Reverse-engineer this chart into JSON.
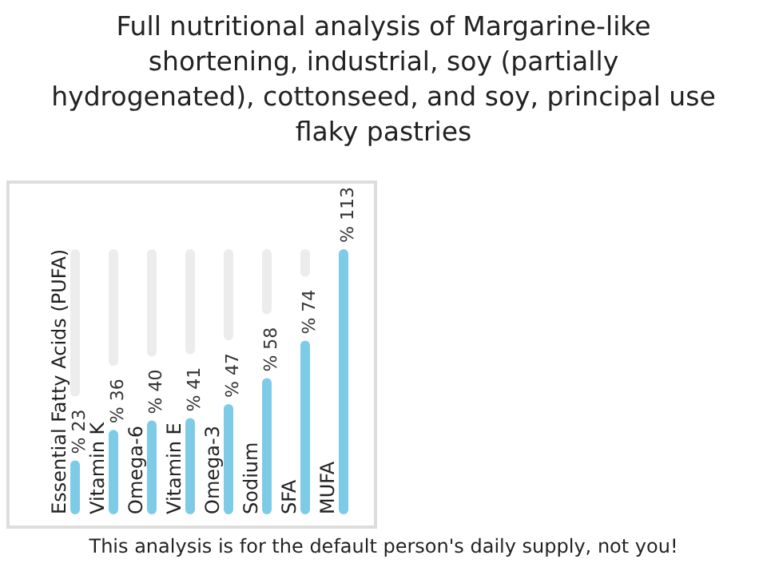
{
  "chart_data": {
    "type": "bar",
    "title": "Full nutritional analysis of Margarine-like shortening, industrial, soy (partially hydrogenated), cottonseed, and soy, principal use flaky pastries",
    "categories": [
      "Essential Fatty Acids (PUFA)",
      "Vitamin K",
      "Omega-6",
      "Vitamin E",
      "Omega-3",
      "Sodium",
      "SFA",
      "MUFA"
    ],
    "values": [
      23,
      36,
      40,
      41,
      47,
      58,
      74,
      113
    ],
    "value_labels": [
      "% 23",
      "% 36",
      "% 40",
      "% 41",
      "% 47",
      "% 58",
      "% 74",
      "% 113"
    ],
    "color": "#7ecbe8",
    "annotations": [
      "This analysis is for the default person's daily supply, not you!"
    ]
  }
}
